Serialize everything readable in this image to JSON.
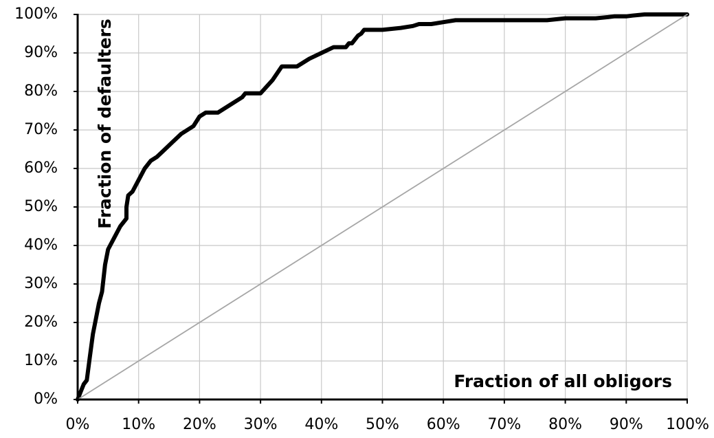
{
  "chart_data": {
    "type": "line",
    "title": "",
    "xlabel": "Fraction of all obligors",
    "ylabel": "Fraction of defaulters",
    "xlim": [
      0,
      100
    ],
    "ylim": [
      0,
      100
    ],
    "x_ticks": [
      "0%",
      "10%",
      "20%",
      "30%",
      "40%",
      "50%",
      "60%",
      "70%",
      "80%",
      "90%",
      "100%"
    ],
    "y_ticks": [
      "0%",
      "10%",
      "20%",
      "30%",
      "40%",
      "50%",
      "60%",
      "70%",
      "80%",
      "90%",
      "100%"
    ],
    "grid": true,
    "series": [
      {
        "style": "curve",
        "color": "#000000",
        "x": [
          0,
          0.5,
          1,
          1.5,
          2,
          2.5,
          3,
          3.5,
          4,
          4.5,
          5,
          6,
          7,
          8,
          8,
          8.3,
          9,
          10,
          11,
          12,
          13,
          14,
          15,
          17,
          19,
          20,
          21,
          23,
          25,
          27,
          27.5,
          30,
          32,
          33.5,
          36,
          38,
          40,
          42,
          44,
          44.5,
          45,
          45.5,
          46,
          46.5,
          47,
          50,
          53,
          55,
          56,
          58,
          60,
          62,
          65,
          70,
          75,
          77,
          80,
          85,
          87,
          88,
          90,
          91,
          93,
          94,
          96,
          98,
          100
        ],
        "y": [
          0,
          2,
          4,
          5,
          11,
          17,
          21,
          25,
          28,
          35,
          39,
          42,
          45,
          47,
          50,
          53,
          54,
          57,
          60,
          62,
          63,
          64.5,
          66,
          69,
          71,
          73.5,
          74.5,
          74.5,
          76.5,
          78.5,
          79.5,
          79.5,
          83,
          86.5,
          86.5,
          88.5,
          90,
          91.5,
          91.5,
          92.5,
          92.5,
          93.5,
          94.5,
          95,
          96,
          96,
          96.5,
          97,
          97.5,
          97.5,
          98,
          98.5,
          98.5,
          98.5,
          98.5,
          98.5,
          99,
          99,
          99.3,
          99.5,
          99.5,
          99.7,
          100,
          100,
          100,
          100,
          100
        ]
      },
      {
        "style": "diagonal",
        "color": "#a6a6a6",
        "x": [
          0,
          100
        ],
        "y": [
          0,
          100
        ]
      }
    ]
  }
}
